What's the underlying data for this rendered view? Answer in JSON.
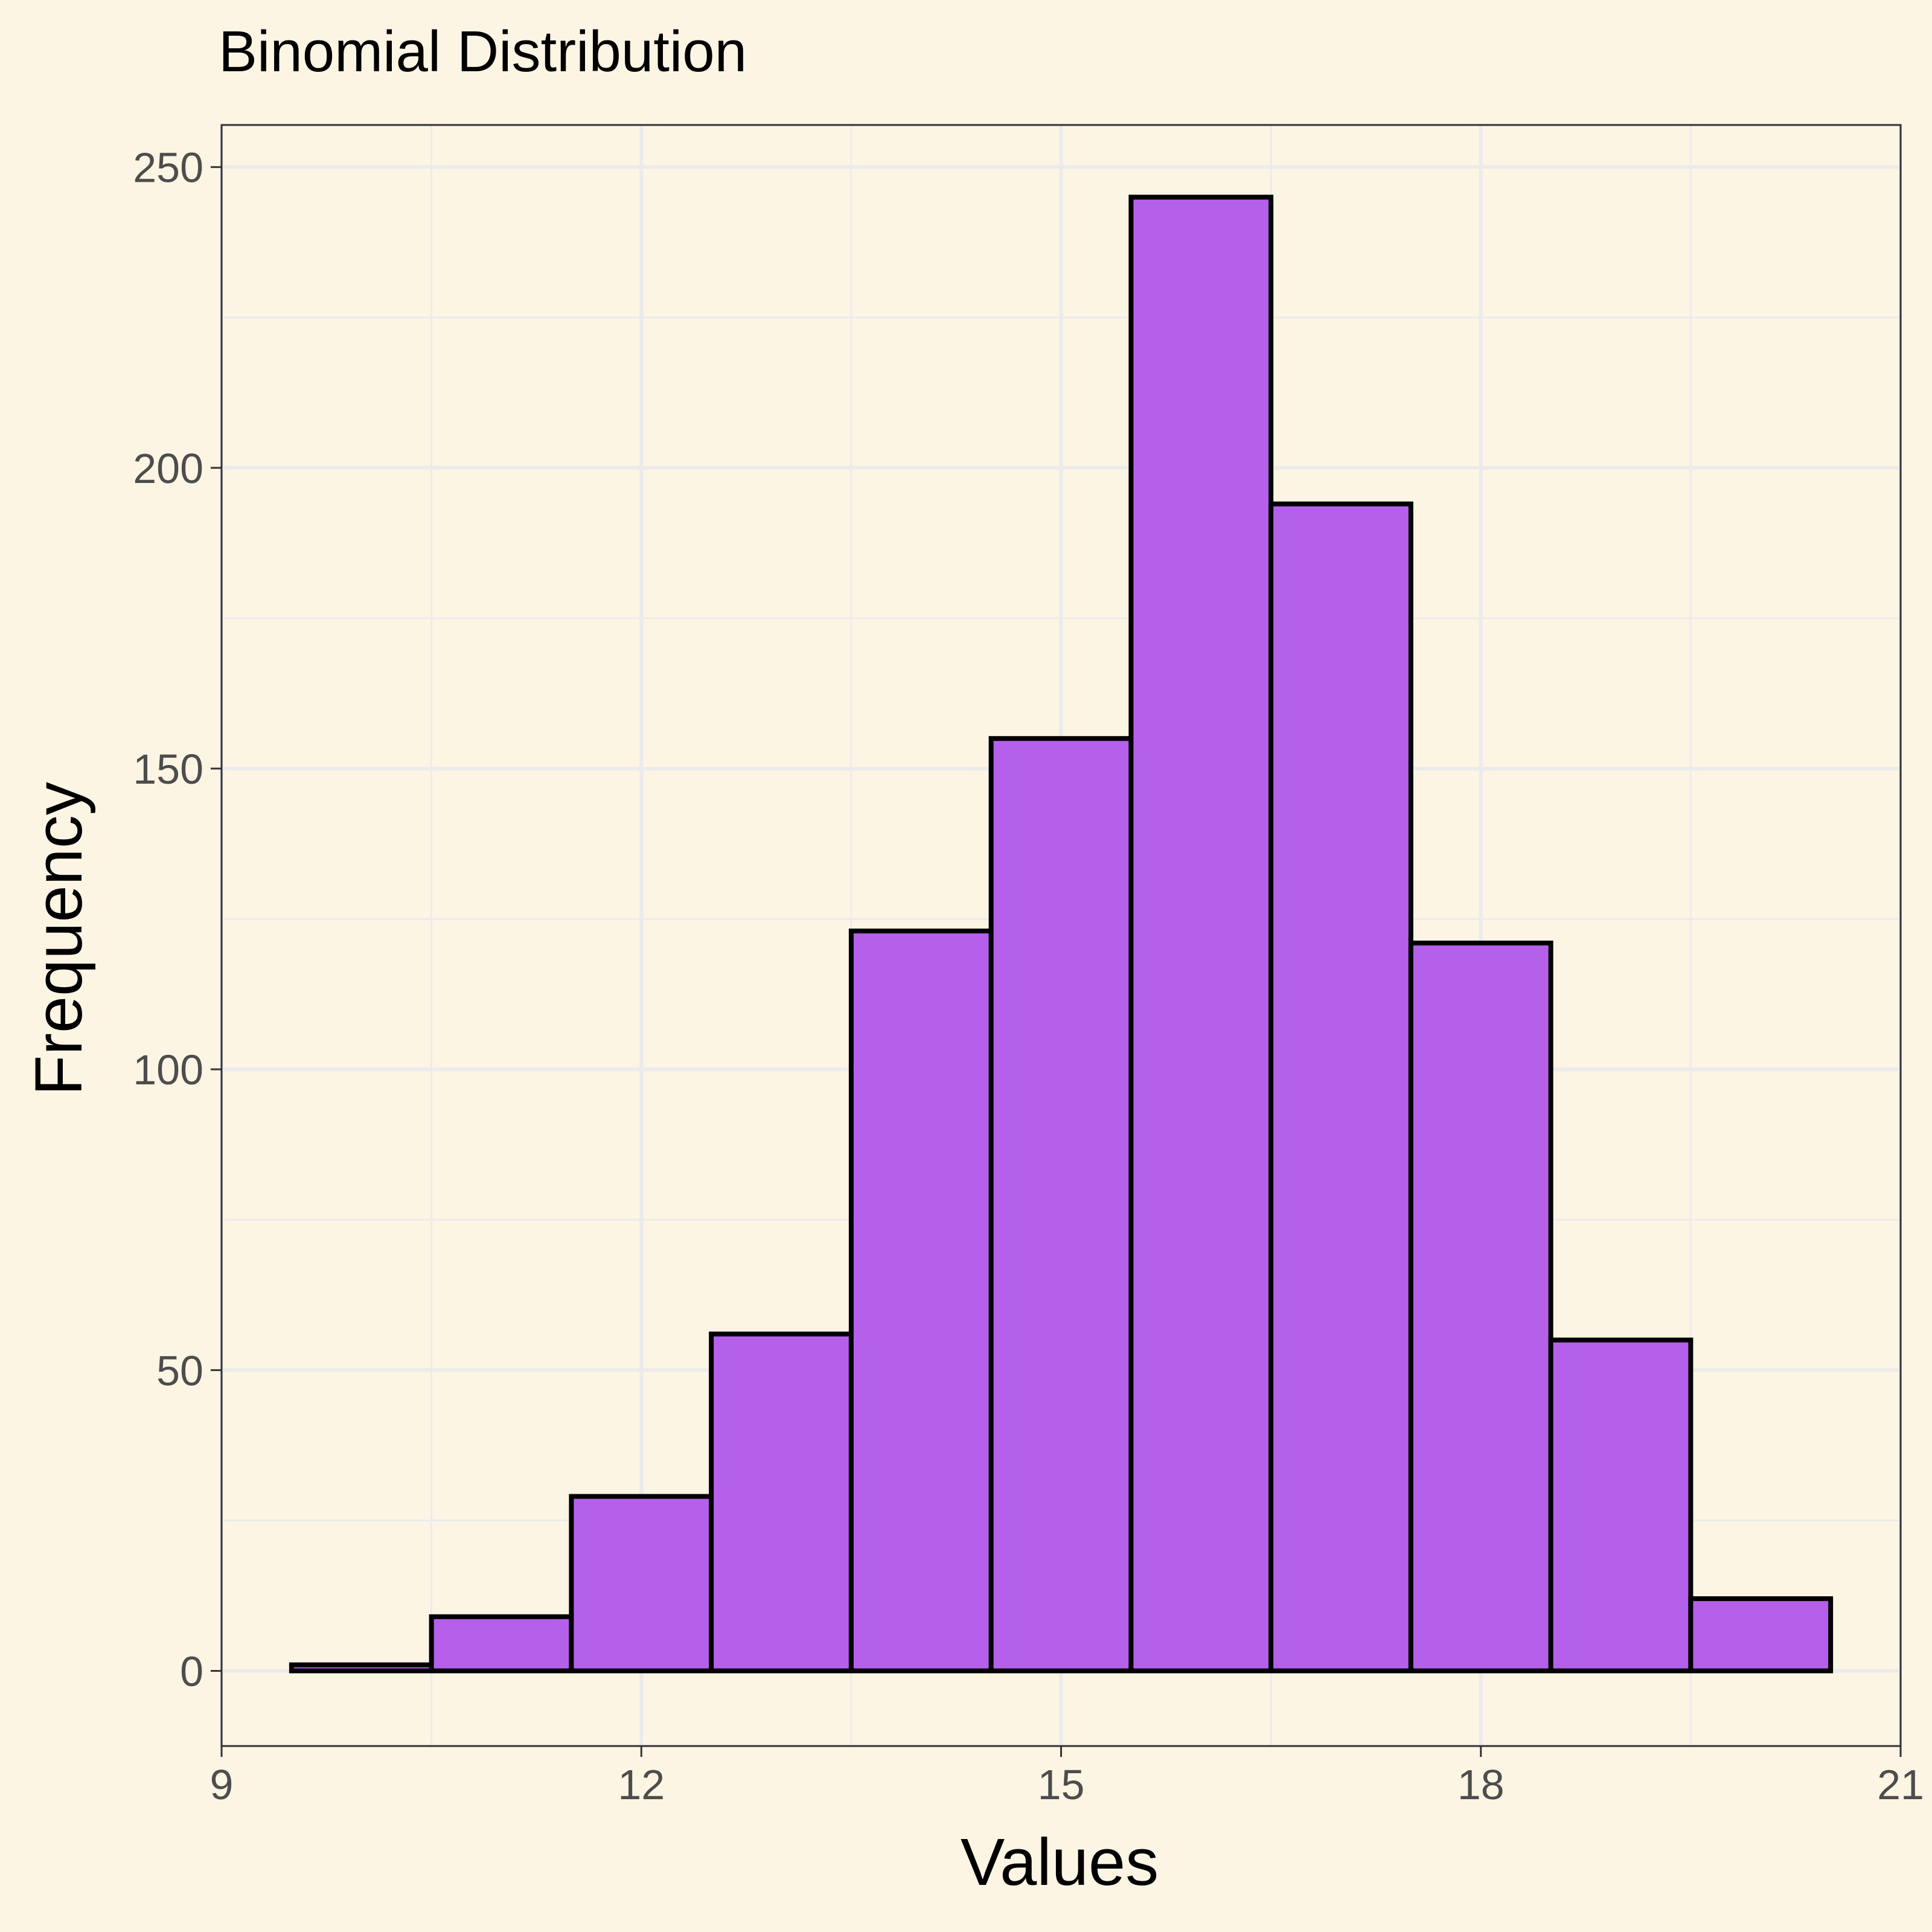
{
  "chart_data": {
    "type": "bar",
    "title": "Binomial Distribution",
    "xlabel": "Values",
    "ylabel": "Frequency",
    "bins": [
      {
        "x": 10,
        "value": 1
      },
      {
        "x": 11,
        "value": 9
      },
      {
        "x": 12,
        "value": 29
      },
      {
        "x": 13,
        "value": 56
      },
      {
        "x": 14,
        "value": 123
      },
      {
        "x": 15,
        "value": 155
      },
      {
        "x": 16,
        "value": 245
      },
      {
        "x": 17,
        "value": 194
      },
      {
        "x": 18,
        "value": 121
      },
      {
        "x": 19,
        "value": 55
      },
      {
        "x": 20,
        "value": 12
      }
    ],
    "bin_width": 1,
    "xlim": [
      9,
      21
    ],
    "ylim": [
      -12.5,
      257
    ],
    "x_ticks": [
      9,
      12,
      15,
      18,
      21
    ],
    "y_ticks": [
      0,
      50,
      100,
      150,
      200,
      250
    ],
    "grid": true,
    "colors": {
      "background": "#FDF5E4",
      "bar_fill": "#B560EB",
      "bar_stroke": "#000000",
      "grid": "#EBEBEB",
      "axis_text": "#4D4D4D",
      "panel_border": "#333333"
    }
  }
}
